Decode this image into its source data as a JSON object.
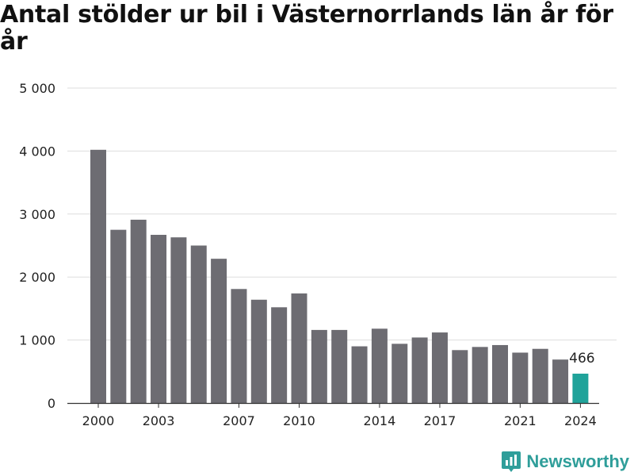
{
  "chart_data": {
    "type": "bar",
    "title": "Antal stölder ur bil i Västernorrlands län år för år",
    "xlabel": "",
    "ylabel": "",
    "ylim": [
      0,
      5000
    ],
    "y_ticks": [
      0,
      1000,
      2000,
      3000,
      4000,
      5000
    ],
    "y_tick_labels": [
      "0",
      "1 000",
      "2 000",
      "3 000",
      "4 000",
      "5 000"
    ],
    "x_tick_labels": [
      "2000",
      "2003",
      "2007",
      "2010",
      "2014",
      "2017",
      "2021",
      "2024"
    ],
    "categories": [
      "2000",
      "2001",
      "2002",
      "2003",
      "2004",
      "2005",
      "2006",
      "2007",
      "2008",
      "2009",
      "2010",
      "2011",
      "2012",
      "2013",
      "2014",
      "2015",
      "2016",
      "2017",
      "2018",
      "2019",
      "2020",
      "2021",
      "2022",
      "2023",
      "2024"
    ],
    "values": [
      4020,
      2750,
      2910,
      2670,
      2630,
      2500,
      2290,
      1810,
      1640,
      1520,
      1740,
      1160,
      1160,
      900,
      1180,
      940,
      1040,
      1120,
      840,
      890,
      920,
      800,
      860,
      690,
      466
    ],
    "colors": {
      "default": "#6d6c72",
      "highlight": "#20a39a",
      "grid": "#dddddd",
      "axis": "#333333"
    },
    "highlight_category": "2024",
    "data_labels": [
      {
        "category": "2024",
        "text": "466"
      }
    ],
    "grid": true
  },
  "brand": {
    "name": "Newsworthy",
    "icon": "bar-chart-badge-icon"
  }
}
